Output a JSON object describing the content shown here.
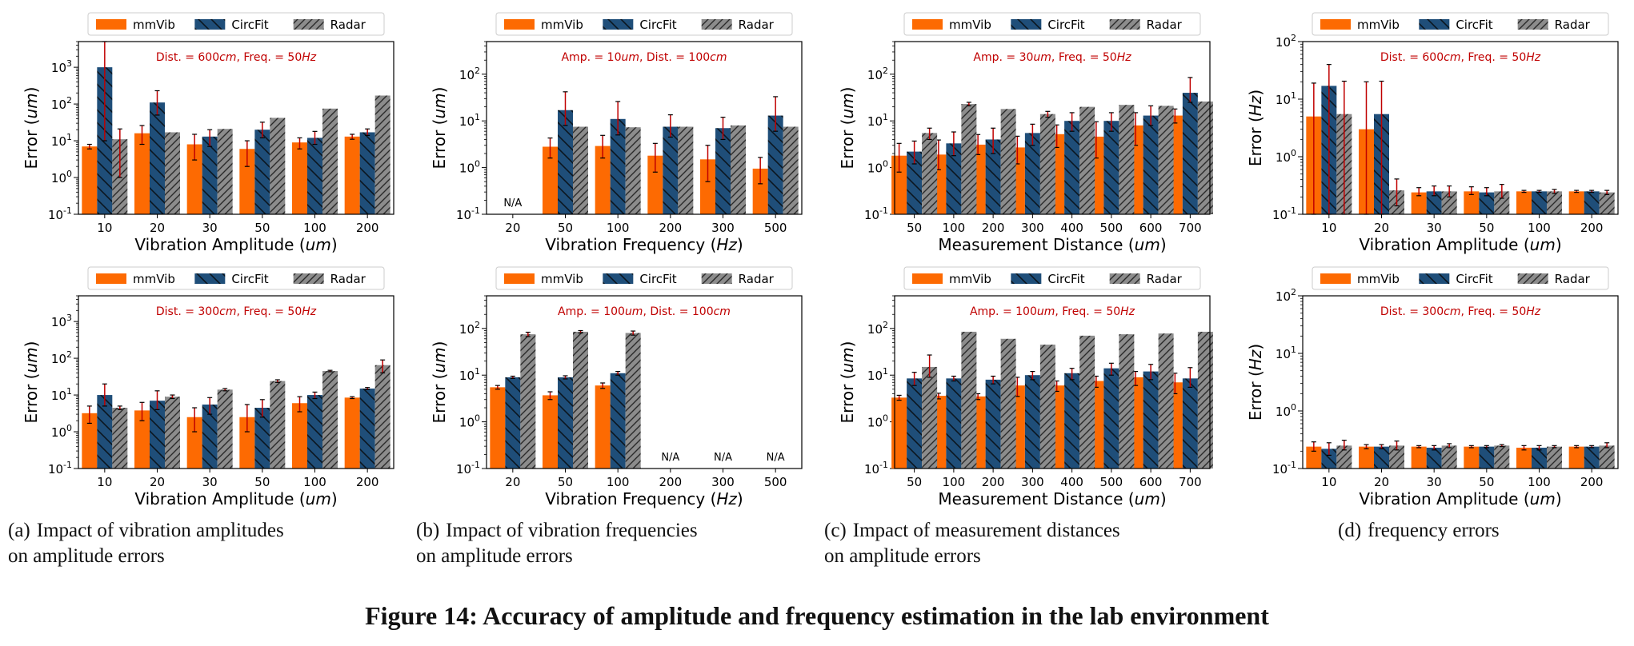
{
  "colors": {
    "mmVib": "#fd6a02",
    "CircFit": "#1f4e79",
    "Radar": "#8c8c8c",
    "error_bar": "#c00000",
    "annotation": "#c00000"
  },
  "figure_title": "Figure 14: Accuracy of amplitude and frequency estimation in the lab environment",
  "captions": [
    {
      "tag": "(a)",
      "lines": [
        "Impact of vibration amplitudes",
        "on amplitude errors"
      ]
    },
    {
      "tag": "(b)",
      "lines": [
        "Impact of vibration frequencies",
        "on amplitude errors"
      ]
    },
    {
      "tag": "(c)",
      "lines": [
        "Impact of measurement distances",
        "on amplitude errors"
      ]
    },
    {
      "tag": "(d)",
      "lines": [
        "frequency errors"
      ]
    }
  ],
  "chart_data": [
    {
      "type": "bar",
      "yscale": "log",
      "ylim": [
        0.1,
        5000
      ],
      "ytick_exps": [
        -1,
        0,
        1,
        2,
        3
      ],
      "annotation": "Dist. = 600cm, Freq. = 50Hz",
      "xlabel": "Vibration Amplitude (um)",
      "ylabel": "Error (um)",
      "categories": [
        "10",
        "20",
        "30",
        "50",
        "100",
        "200"
      ],
      "legend": "top",
      "na_labels": [],
      "series": [
        {
          "name": "mmVib",
          "values": [
            7,
            16,
            8,
            6,
            9,
            13
          ],
          "err_low": [
            1,
            8,
            5,
            4,
            3,
            2
          ],
          "err_high": [
            1,
            10,
            7,
            4,
            3,
            2
          ]
        },
        {
          "name": "CircFit",
          "values": [
            1000,
            110,
            13,
            20,
            12,
            17
          ],
          "err_low": [
            990,
            60,
            6,
            8,
            4,
            3
          ],
          "err_high": [
            4000,
            120,
            7,
            12,
            6,
            4
          ]
        },
        {
          "name": "Radar",
          "values": [
            11,
            17,
            21,
            42,
            75,
            170
          ],
          "err_low": [
            10,
            0,
            0,
            0,
            0,
            0
          ],
          "err_high": [
            10,
            0,
            0,
            0,
            0,
            0
          ]
        }
      ]
    },
    {
      "type": "bar",
      "yscale": "log",
      "ylim": [
        0.1,
        500
      ],
      "ytick_exps": [
        -1,
        0,
        1,
        2
      ],
      "annotation": "Amp. = 10um, Dist. = 100cm",
      "xlabel": "Vibration Frequency (Hz)",
      "ylabel": "Error (um)",
      "categories": [
        "20",
        "50",
        "100",
        "200",
        "300",
        "500"
      ],
      "legend": "top",
      "na_labels": [
        {
          "category": "20",
          "text": "N/A"
        }
      ],
      "series": [
        {
          "name": "mmVib",
          "values": [
            null,
            2.8,
            2.9,
            1.8,
            1.5,
            0.95
          ],
          "err_low": [
            0,
            1.2,
            1.3,
            1,
            1,
            0.5
          ],
          "err_high": [
            0,
            1.5,
            2,
            1.5,
            1.5,
            0.7
          ]
        },
        {
          "name": "CircFit",
          "values": [
            null,
            17,
            11,
            7.5,
            7,
            13
          ],
          "err_low": [
            0,
            9,
            6,
            3,
            3,
            7
          ],
          "err_high": [
            0,
            25,
            15,
            6,
            5,
            20
          ]
        },
        {
          "name": "Radar",
          "values": [
            null,
            7.5,
            7.3,
            7.5,
            8,
            7.5
          ],
          "err_low": [
            0,
            0,
            0,
            0,
            0,
            0
          ],
          "err_high": [
            0,
            0,
            0,
            0,
            0,
            0
          ]
        }
      ]
    },
    {
      "type": "bar",
      "yscale": "log",
      "ylim": [
        0.1,
        500
      ],
      "ytick_exps": [
        -1,
        0,
        1,
        2
      ],
      "annotation": "Amp. = 30um, Freq. = 50Hz",
      "xlabel": "Measurement Distance (um)",
      "ylabel": "Error (um)",
      "categories": [
        "50",
        "100",
        "200",
        "300",
        "400",
        "500",
        "600",
        "700"
      ],
      "legend": "top",
      "na_labels": [],
      "series": [
        {
          "name": "mmVib",
          "values": [
            1.8,
            1.9,
            3.1,
            2.7,
            5.2,
            4.6,
            8,
            13
          ],
          "err_low": [
            1,
            1,
            1.2,
            1.5,
            2.5,
            3,
            5,
            4
          ],
          "err_high": [
            1.5,
            2,
            2,
            2,
            3,
            5,
            7,
            5
          ]
        },
        {
          "name": "CircFit",
          "values": [
            2.2,
            3.3,
            4,
            5.5,
            10,
            10,
            13,
            40
          ],
          "err_low": [
            1,
            1.5,
            2,
            2.5,
            4,
            4,
            5,
            15
          ],
          "err_high": [
            1.5,
            2.5,
            3,
            3,
            5,
            5,
            8,
            45
          ]
        },
        {
          "name": "Radar",
          "values": [
            5.5,
            23,
            18,
            14,
            20,
            22,
            21,
            26
          ],
          "err_low": [
            1.5,
            2,
            0,
            2,
            0,
            0,
            0,
            0
          ],
          "err_high": [
            1.5,
            2,
            0,
            2,
            0,
            0,
            0,
            0
          ]
        }
      ]
    },
    {
      "type": "bar",
      "yscale": "log",
      "ylim": [
        0.1,
        100
      ],
      "ytick_exps": [
        -1,
        0,
        1,
        2
      ],
      "annotation": "Dist. = 600cm, Freq. = 50Hz",
      "xlabel": "Vibration Amplitude (um)",
      "ylabel": "Error (Hz)",
      "categories": [
        "10",
        "20",
        "30",
        "50",
        "100",
        "200"
      ],
      "legend": "top",
      "na_labels": [],
      "series": [
        {
          "name": "mmVib",
          "values": [
            5,
            3,
            0.24,
            0.25,
            0.25,
            0.25
          ],
          "err_low": [
            4.9,
            2.9,
            0.03,
            0.03,
            0.01,
            0.01
          ],
          "err_high": [
            14,
            17,
            0.05,
            0.05,
            0.01,
            0.01
          ]
        },
        {
          "name": "CircFit",
          "values": [
            17,
            5.5,
            0.25,
            0.24,
            0.25,
            0.25
          ],
          "err_low": [
            16.9,
            5.4,
            0.04,
            0.03,
            0.01,
            0.01
          ],
          "err_high": [
            23,
            15,
            0.06,
            0.05,
            0.01,
            0.01
          ]
        },
        {
          "name": "Radar",
          "values": [
            5.5,
            0.26,
            0.25,
            0.25,
            0.25,
            0.24
          ],
          "err_low": [
            5.4,
            0.12,
            0.05,
            0.06,
            0.02,
            0.02
          ],
          "err_high": [
            15,
            0.15,
            0.06,
            0.08,
            0.02,
            0.02
          ]
        }
      ]
    },
    {
      "type": "bar",
      "yscale": "log",
      "ylim": [
        0.1,
        5000
      ],
      "ytick_exps": [
        -1,
        0,
        1,
        2,
        3
      ],
      "annotation": "Dist. = 300cm, Freq. = 50Hz",
      "xlabel": "Vibration Amplitude (um)",
      "ylabel": "Error (um)",
      "categories": [
        "10",
        "20",
        "30",
        "50",
        "100",
        "200"
      ],
      "legend": "top",
      "na_labels": [],
      "series": [
        {
          "name": "mmVib",
          "values": [
            3.2,
            3.8,
            2.5,
            2.5,
            6,
            8.5
          ],
          "err_low": [
            1.5,
            1.8,
            1.5,
            1.5,
            2.5,
            0.5
          ],
          "err_high": [
            1.8,
            2.5,
            2,
            3,
            3,
            0.5
          ]
        },
        {
          "name": "CircFit",
          "values": [
            10,
            7,
            5.5,
            4.5,
            10,
            15
          ],
          "err_low": [
            5,
            3,
            2.5,
            2,
            2,
            1
          ],
          "err_high": [
            10,
            6,
            3,
            3,
            2,
            1
          ]
        },
        {
          "name": "Radar",
          "values": [
            4.5,
            9,
            14,
            24,
            45,
            65
          ],
          "err_low": [
            0.5,
            1,
            1,
            2,
            2,
            25
          ],
          "err_high": [
            0.5,
            1,
            1,
            2,
            2,
            25
          ]
        }
      ]
    },
    {
      "type": "bar",
      "yscale": "log",
      "ylim": [
        0.1,
        500
      ],
      "ytick_exps": [
        -1,
        0,
        1,
        2
      ],
      "annotation": "Amp. = 100um, Dist. = 100cm",
      "xlabel": "Vibration Frequency (Hz)",
      "ylabel": "Error (um)",
      "categories": [
        "20",
        "50",
        "100",
        "200",
        "300",
        "500"
      ],
      "legend": "top",
      "na_labels": [
        {
          "category": "200",
          "text": "N/A"
        },
        {
          "category": "300",
          "text": "N/A"
        },
        {
          "category": "500",
          "text": "N/A"
        }
      ],
      "series": [
        {
          "name": "mmVib",
          "values": [
            5.5,
            3.7,
            6,
            null,
            null,
            null
          ],
          "err_low": [
            0.5,
            0.7,
            0.8,
            0,
            0,
            0
          ],
          "err_high": [
            0.5,
            0.7,
            0.8,
            0,
            0,
            0
          ]
        },
        {
          "name": "CircFit",
          "values": [
            9,
            9,
            11,
            null,
            null,
            null
          ],
          "err_low": [
            0.5,
            0.7,
            1,
            0,
            0,
            0
          ],
          "err_high": [
            0.5,
            0.7,
            1,
            0,
            0,
            0
          ]
        },
        {
          "name": "Radar",
          "values": [
            75,
            85,
            80,
            null,
            null,
            null
          ],
          "err_low": [
            8,
            5,
            8,
            0,
            0,
            0
          ],
          "err_high": [
            8,
            5,
            8,
            0,
            0,
            0
          ]
        }
      ]
    },
    {
      "type": "bar",
      "yscale": "log",
      "ylim": [
        0.1,
        500
      ],
      "ytick_exps": [
        -1,
        0,
        1,
        2
      ],
      "annotation": "Amp. = 100um, Freq. = 50Hz",
      "xlabel": "Measurement Distance (um)",
      "ylabel": "Error (um)",
      "categories": [
        "50",
        "100",
        "200",
        "300",
        "400",
        "500",
        "600",
        "700"
      ],
      "legend": "top",
      "na_labels": [],
      "series": [
        {
          "name": "mmVib",
          "values": [
            3.3,
            3.6,
            3.5,
            6,
            6,
            7.5,
            9,
            7
          ],
          "err_low": [
            0.4,
            0.5,
            0.5,
            2.5,
            1.5,
            2,
            3,
            3
          ],
          "err_high": [
            0.4,
            0.5,
            0.5,
            3,
            1.5,
            2,
            3,
            4
          ]
        },
        {
          "name": "CircFit",
          "values": [
            8.5,
            8.5,
            8,
            10,
            11,
            14,
            12,
            8.5
          ],
          "err_low": [
            2.5,
            1,
            1.5,
            2,
            3,
            4,
            4,
            3
          ],
          "err_high": [
            3,
            1,
            1.5,
            2,
            3,
            4,
            5,
            6
          ]
        },
        {
          "name": "Radar",
          "values": [
            15,
            85,
            60,
            45,
            70,
            75,
            78,
            85
          ],
          "err_low": [
            6,
            0,
            0,
            0,
            0,
            0,
            0,
            0
          ],
          "err_high": [
            12,
            0,
            0,
            0,
            0,
            0,
            0,
            0
          ]
        }
      ]
    },
    {
      "type": "bar",
      "yscale": "log",
      "ylim": [
        0.1,
        100
      ],
      "ytick_exps": [
        -1,
        0,
        1,
        2
      ],
      "annotation": "Dist. = 300cm, Freq. = 50Hz",
      "xlabel": "Vibration Amplitude (um)",
      "ylabel": "Error (Hz)",
      "categories": [
        "10",
        "20",
        "30",
        "50",
        "100",
        "200"
      ],
      "legend": "top",
      "na_labels": [],
      "series": [
        {
          "name": "mmVib",
          "values": [
            0.24,
            0.24,
            0.24,
            0.24,
            0.23,
            0.24
          ],
          "err_low": [
            0.04,
            0.02,
            0.01,
            0.01,
            0.02,
            0.01
          ],
          "err_high": [
            0.05,
            0.02,
            0.01,
            0.01,
            0.02,
            0.01
          ]
        },
        {
          "name": "CircFit",
          "values": [
            0.22,
            0.24,
            0.23,
            0.24,
            0.23,
            0.24
          ],
          "err_low": [
            0.05,
            0.02,
            0.02,
            0.01,
            0.02,
            0.01
          ],
          "err_high": [
            0.06,
            0.02,
            0.02,
            0.01,
            0.02,
            0.01
          ]
        },
        {
          "name": "Radar",
          "values": [
            0.25,
            0.25,
            0.25,
            0.25,
            0.24,
            0.25
          ],
          "err_low": [
            0.04,
            0.04,
            0.02,
            0.01,
            0.01,
            0.02
          ],
          "err_high": [
            0.06,
            0.05,
            0.02,
            0.01,
            0.01,
            0.03
          ]
        }
      ]
    }
  ]
}
